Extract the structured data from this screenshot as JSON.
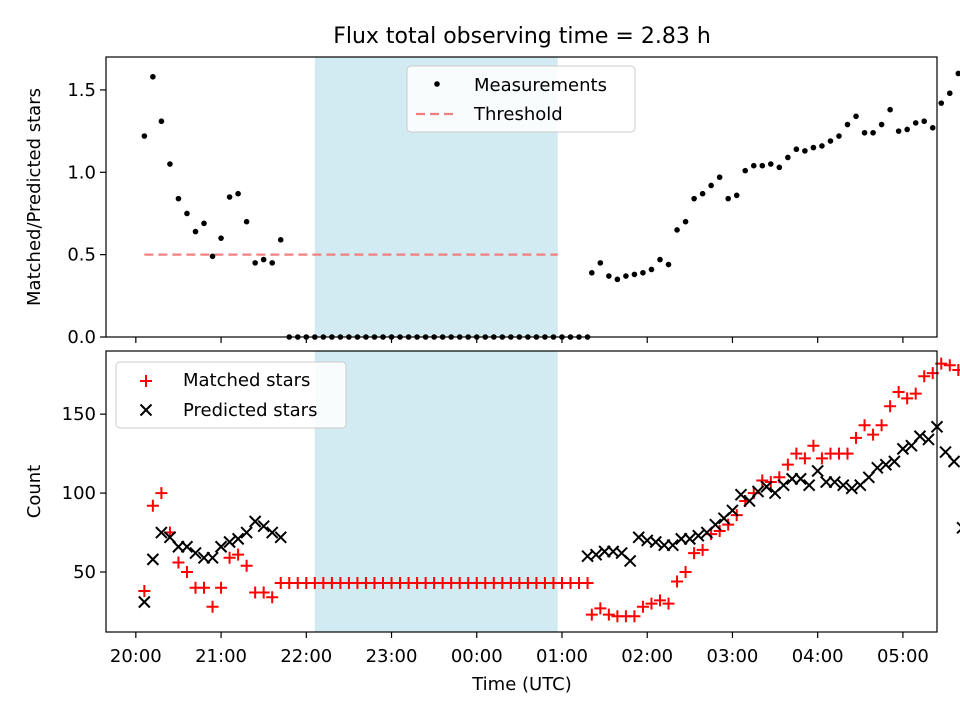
{
  "title": "Flux total observing time = 2.83 h",
  "xlabel": "Time (UTC)",
  "x_ticks": [
    "20:00",
    "21:00",
    "22:00",
    "23:00",
    "00:00",
    "01:00",
    "02:00",
    "03:00",
    "04:00",
    "05:00"
  ],
  "colors": {
    "measurement": "#000000",
    "threshold": "#f08080",
    "matched": "#ff0000",
    "predicted": "#000000",
    "highlight": "#add8e6"
  },
  "chart_data": [
    {
      "type": "scatter",
      "ylabel": "Matched/Predicted stars",
      "yticks": [
        "0.0",
        "0.5",
        "1.0",
        "1.5"
      ],
      "ylim": [
        0,
        1.7
      ],
      "x_unit": "hours since 20:00 UTC",
      "xlim": [
        -0.35,
        9.4
      ],
      "highlight_span": [
        2.1,
        4.95
      ],
      "legend": {
        "position": "top-center",
        "entries": [
          "Measurements",
          "Threshold"
        ]
      },
      "threshold": {
        "name": "Threshold",
        "value": 0.5,
        "x_range": [
          0.1,
          4.95
        ]
      },
      "series": [
        {
          "name": "Measurements",
          "points": [
            [
              0.1,
              1.22
            ],
            [
              0.2,
              1.58
            ],
            [
              0.3,
              1.31
            ],
            [
              0.4,
              1.05
            ],
            [
              0.5,
              0.84
            ],
            [
              0.6,
              0.75
            ],
            [
              0.7,
              0.64
            ],
            [
              0.8,
              0.69
            ],
            [
              0.9,
              0.49
            ],
            [
              1.0,
              0.6
            ],
            [
              1.1,
              0.85
            ],
            [
              1.2,
              0.87
            ],
            [
              1.3,
              0.7
            ],
            [
              1.4,
              0.45
            ],
            [
              1.5,
              0.47
            ],
            [
              1.6,
              0.45
            ],
            [
              1.7,
              0.59
            ],
            [
              1.8,
              0.0
            ],
            [
              1.9,
              0.0
            ],
            [
              2.0,
              0.0
            ],
            [
              2.1,
              0.0
            ],
            [
              2.2,
              0.0
            ],
            [
              2.3,
              0.0
            ],
            [
              2.4,
              0.0
            ],
            [
              2.5,
              0.0
            ],
            [
              2.6,
              0.0
            ],
            [
              2.7,
              0.0
            ],
            [
              2.8,
              0.0
            ],
            [
              2.9,
              0.0
            ],
            [
              3.0,
              0.0
            ],
            [
              3.1,
              0.0
            ],
            [
              3.2,
              0.0
            ],
            [
              3.3,
              0.0
            ],
            [
              3.4,
              0.0
            ],
            [
              3.5,
              0.0
            ],
            [
              3.6,
              0.0
            ],
            [
              3.7,
              0.0
            ],
            [
              3.8,
              0.0
            ],
            [
              3.9,
              0.0
            ],
            [
              4.0,
              0.0
            ],
            [
              4.1,
              0.0
            ],
            [
              4.2,
              0.0
            ],
            [
              4.3,
              0.0
            ],
            [
              4.4,
              0.0
            ],
            [
              4.5,
              0.0
            ],
            [
              4.6,
              0.0
            ],
            [
              4.7,
              0.0
            ],
            [
              4.8,
              0.0
            ],
            [
              4.9,
              0.0
            ],
            [
              5.0,
              0.0
            ],
            [
              5.1,
              0.0
            ],
            [
              5.2,
              0.0
            ],
            [
              5.3,
              0.0
            ],
            [
              5.35,
              0.39
            ],
            [
              5.45,
              0.45
            ],
            [
              5.55,
              0.37
            ],
            [
              5.65,
              0.35
            ],
            [
              5.75,
              0.37
            ],
            [
              5.85,
              0.38
            ],
            [
              5.95,
              0.39
            ],
            [
              6.05,
              0.41
            ],
            [
              6.15,
              0.47
            ],
            [
              6.25,
              0.44
            ],
            [
              6.35,
              0.65
            ],
            [
              6.45,
              0.7
            ],
            [
              6.55,
              0.84
            ],
            [
              6.65,
              0.87
            ],
            [
              6.75,
              0.92
            ],
            [
              6.85,
              0.97
            ],
            [
              6.95,
              0.84
            ],
            [
              7.05,
              0.86
            ],
            [
              7.15,
              1.01
            ],
            [
              7.25,
              1.04
            ],
            [
              7.35,
              1.04
            ],
            [
              7.45,
              1.05
            ],
            [
              7.55,
              1.03
            ],
            [
              7.65,
              1.09
            ],
            [
              7.75,
              1.14
            ],
            [
              7.85,
              1.13
            ],
            [
              7.95,
              1.15
            ],
            [
              8.05,
              1.16
            ],
            [
              8.15,
              1.19
            ],
            [
              8.25,
              1.22
            ],
            [
              8.35,
              1.29
            ],
            [
              8.45,
              1.34
            ],
            [
              8.55,
              1.24
            ],
            [
              8.65,
              1.24
            ],
            [
              8.75,
              1.29
            ],
            [
              8.85,
              1.38
            ],
            [
              8.95,
              1.25
            ],
            [
              9.05,
              1.26
            ],
            [
              9.15,
              1.3
            ],
            [
              9.25,
              1.31
            ],
            [
              9.35,
              1.27
            ],
            [
              9.45,
              1.42
            ],
            [
              9.55,
              1.48
            ],
            [
              9.65,
              1.6
            ]
          ]
        }
      ]
    },
    {
      "type": "scatter",
      "ylabel": "Count",
      "yticks": [
        "50",
        "100",
        "150"
      ],
      "ylim": [
        12,
        190
      ],
      "x_unit": "hours since 20:00 UTC",
      "xlim": [
        -0.35,
        9.4
      ],
      "highlight_span": [
        2.1,
        4.95
      ],
      "legend": {
        "position": "top-left",
        "entries": [
          "Matched stars",
          "Predicted stars"
        ]
      },
      "series": [
        {
          "name": "Matched stars",
          "marker": "plus",
          "points": [
            [
              0.1,
              38
            ],
            [
              0.2,
              92
            ],
            [
              0.3,
              100
            ],
            [
              0.4,
              75
            ],
            [
              0.5,
              56
            ],
            [
              0.6,
              50
            ],
            [
              0.7,
              40
            ],
            [
              0.8,
              40
            ],
            [
              0.9,
              28
            ],
            [
              1.0,
              40
            ],
            [
              1.1,
              59
            ],
            [
              1.2,
              61
            ],
            [
              1.3,
              54
            ],
            [
              1.4,
              37
            ],
            [
              1.5,
              37
            ],
            [
              1.6,
              34
            ],
            [
              1.7,
              43
            ],
            [
              1.8,
              43
            ],
            [
              1.9,
              43
            ],
            [
              2.0,
              43
            ],
            [
              2.1,
              43
            ],
            [
              2.2,
              43
            ],
            [
              2.3,
              43
            ],
            [
              2.4,
              43
            ],
            [
              2.5,
              43
            ],
            [
              2.6,
              43
            ],
            [
              2.7,
              43
            ],
            [
              2.8,
              43
            ],
            [
              2.9,
              43
            ],
            [
              3.0,
              43
            ],
            [
              3.1,
              43
            ],
            [
              3.2,
              43
            ],
            [
              3.3,
              43
            ],
            [
              3.4,
              43
            ],
            [
              3.5,
              43
            ],
            [
              3.6,
              43
            ],
            [
              3.7,
              43
            ],
            [
              3.8,
              43
            ],
            [
              3.9,
              43
            ],
            [
              4.0,
              43
            ],
            [
              4.1,
              43
            ],
            [
              4.2,
              43
            ],
            [
              4.3,
              43
            ],
            [
              4.4,
              43
            ],
            [
              4.5,
              43
            ],
            [
              4.6,
              43
            ],
            [
              4.7,
              43
            ],
            [
              4.8,
              43
            ],
            [
              4.9,
              43
            ],
            [
              5.0,
              43
            ],
            [
              5.1,
              43
            ],
            [
              5.2,
              43
            ],
            [
              5.3,
              43
            ],
            [
              5.35,
              23
            ],
            [
              5.45,
              27
            ],
            [
              5.55,
              23
            ],
            [
              5.65,
              22
            ],
            [
              5.75,
              22
            ],
            [
              5.85,
              22
            ],
            [
              5.95,
              28
            ],
            [
              6.05,
              30
            ],
            [
              6.15,
              32
            ],
            [
              6.25,
              30
            ],
            [
              6.35,
              44
            ],
            [
              6.45,
              50
            ],
            [
              6.55,
              62
            ],
            [
              6.65,
              64
            ],
            [
              6.75,
              74
            ],
            [
              6.85,
              76
            ],
            [
              6.95,
              80
            ],
            [
              7.05,
              86
            ],
            [
              7.15,
              95
            ],
            [
              7.25,
              100
            ],
            [
              7.35,
              108
            ],
            [
              7.45,
              107
            ],
            [
              7.55,
              110
            ],
            [
              7.65,
              118
            ],
            [
              7.75,
              125
            ],
            [
              7.85,
              122
            ],
            [
              7.95,
              130
            ],
            [
              8.05,
              122
            ],
            [
              8.15,
              125
            ],
            [
              8.25,
              125
            ],
            [
              8.35,
              125
            ],
            [
              8.45,
              135
            ],
            [
              8.55,
              143
            ],
            [
              8.65,
              137
            ],
            [
              8.75,
              143
            ],
            [
              8.85,
              155
            ],
            [
              8.95,
              164
            ],
            [
              9.05,
              160
            ],
            [
              9.15,
              163
            ],
            [
              9.25,
              174
            ],
            [
              9.35,
              176
            ],
            [
              9.45,
              182
            ],
            [
              9.55,
              181
            ],
            [
              9.65,
              178
            ],
            [
              9.75,
              127
            ]
          ]
        },
        {
          "name": "Predicted stars",
          "marker": "x",
          "points": [
            [
              0.1,
              31
            ],
            [
              0.2,
              58
            ],
            [
              0.3,
              75
            ],
            [
              0.4,
              72
            ],
            [
              0.5,
              66
            ],
            [
              0.6,
              66
            ],
            [
              0.7,
              62
            ],
            [
              0.8,
              59
            ],
            [
              0.9,
              59
            ],
            [
              1.0,
              66
            ],
            [
              1.1,
              69
            ],
            [
              1.2,
              71
            ],
            [
              1.3,
              75
            ],
            [
              1.4,
              82
            ],
            [
              1.5,
              79
            ],
            [
              1.6,
              75
            ],
            [
              1.7,
              72
            ],
            [
              5.3,
              60
            ],
            [
              5.4,
              61
            ],
            [
              5.5,
              63
            ],
            [
              5.6,
              63
            ],
            [
              5.7,
              62
            ],
            [
              5.8,
              57
            ],
            [
              5.9,
              72
            ],
            [
              6.0,
              70
            ],
            [
              6.1,
              69
            ],
            [
              6.2,
              67
            ],
            [
              6.3,
              67
            ],
            [
              6.4,
              71
            ],
            [
              6.5,
              71
            ],
            [
              6.6,
              73
            ],
            [
              6.7,
              75
            ],
            [
              6.8,
              80
            ],
            [
              6.9,
              84
            ],
            [
              7.0,
              89
            ],
            [
              7.1,
              99
            ],
            [
              7.2,
              95
            ],
            [
              7.3,
              101
            ],
            [
              7.4,
              104
            ],
            [
              7.5,
              100
            ],
            [
              7.6,
              105
            ],
            [
              7.7,
              109
            ],
            [
              7.8,
              109
            ],
            [
              7.9,
              105
            ],
            [
              8.0,
              114
            ],
            [
              8.1,
              107
            ],
            [
              8.2,
              107
            ],
            [
              8.3,
              105
            ],
            [
              8.4,
              103
            ],
            [
              8.5,
              105
            ],
            [
              8.6,
              110
            ],
            [
              8.7,
              116
            ],
            [
              8.8,
              118
            ],
            [
              8.9,
              120
            ],
            [
              9.0,
              128
            ],
            [
              9.1,
              130
            ],
            [
              9.2,
              136
            ],
            [
              9.3,
              134
            ],
            [
              9.4,
              142
            ],
            [
              9.5,
              126
            ],
            [
              9.6,
              120
            ],
            [
              9.7,
              78
            ]
          ]
        }
      ]
    }
  ]
}
